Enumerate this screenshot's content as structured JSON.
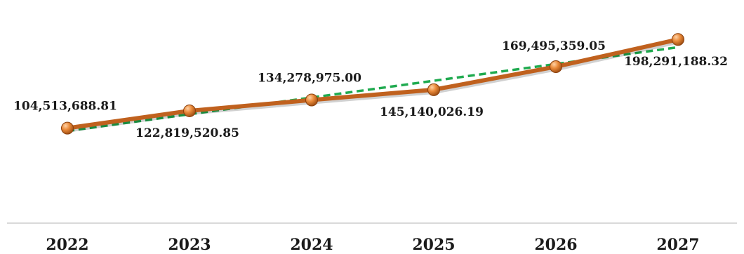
{
  "chart_data": {
    "type": "line",
    "categories": [
      "2022",
      "2023",
      "2024",
      "2025",
      "2026",
      "2027"
    ],
    "series": [
      {
        "values": [
          104513688.81,
          122819520.85,
          134278975.0,
          145140026.19,
          169495359.05,
          198291188.32
        ],
        "data_labels": [
          "104,513,688.81",
          "122,819,520.85",
          "134,278,975.00",
          "145,140,026.19",
          "169,495,359.05",
          "198,291,188.32"
        ],
        "color": "#c0611e",
        "marker_color": "#e07a2a"
      }
    ],
    "trendline": {
      "type": "linear",
      "color": "#1faa4f",
      "style": "dashed"
    },
    "title": "",
    "xlabel": "",
    "ylabel": "",
    "legend": "none",
    "grid": false,
    "ylim": [
      10000000,
      240000000
    ]
  }
}
